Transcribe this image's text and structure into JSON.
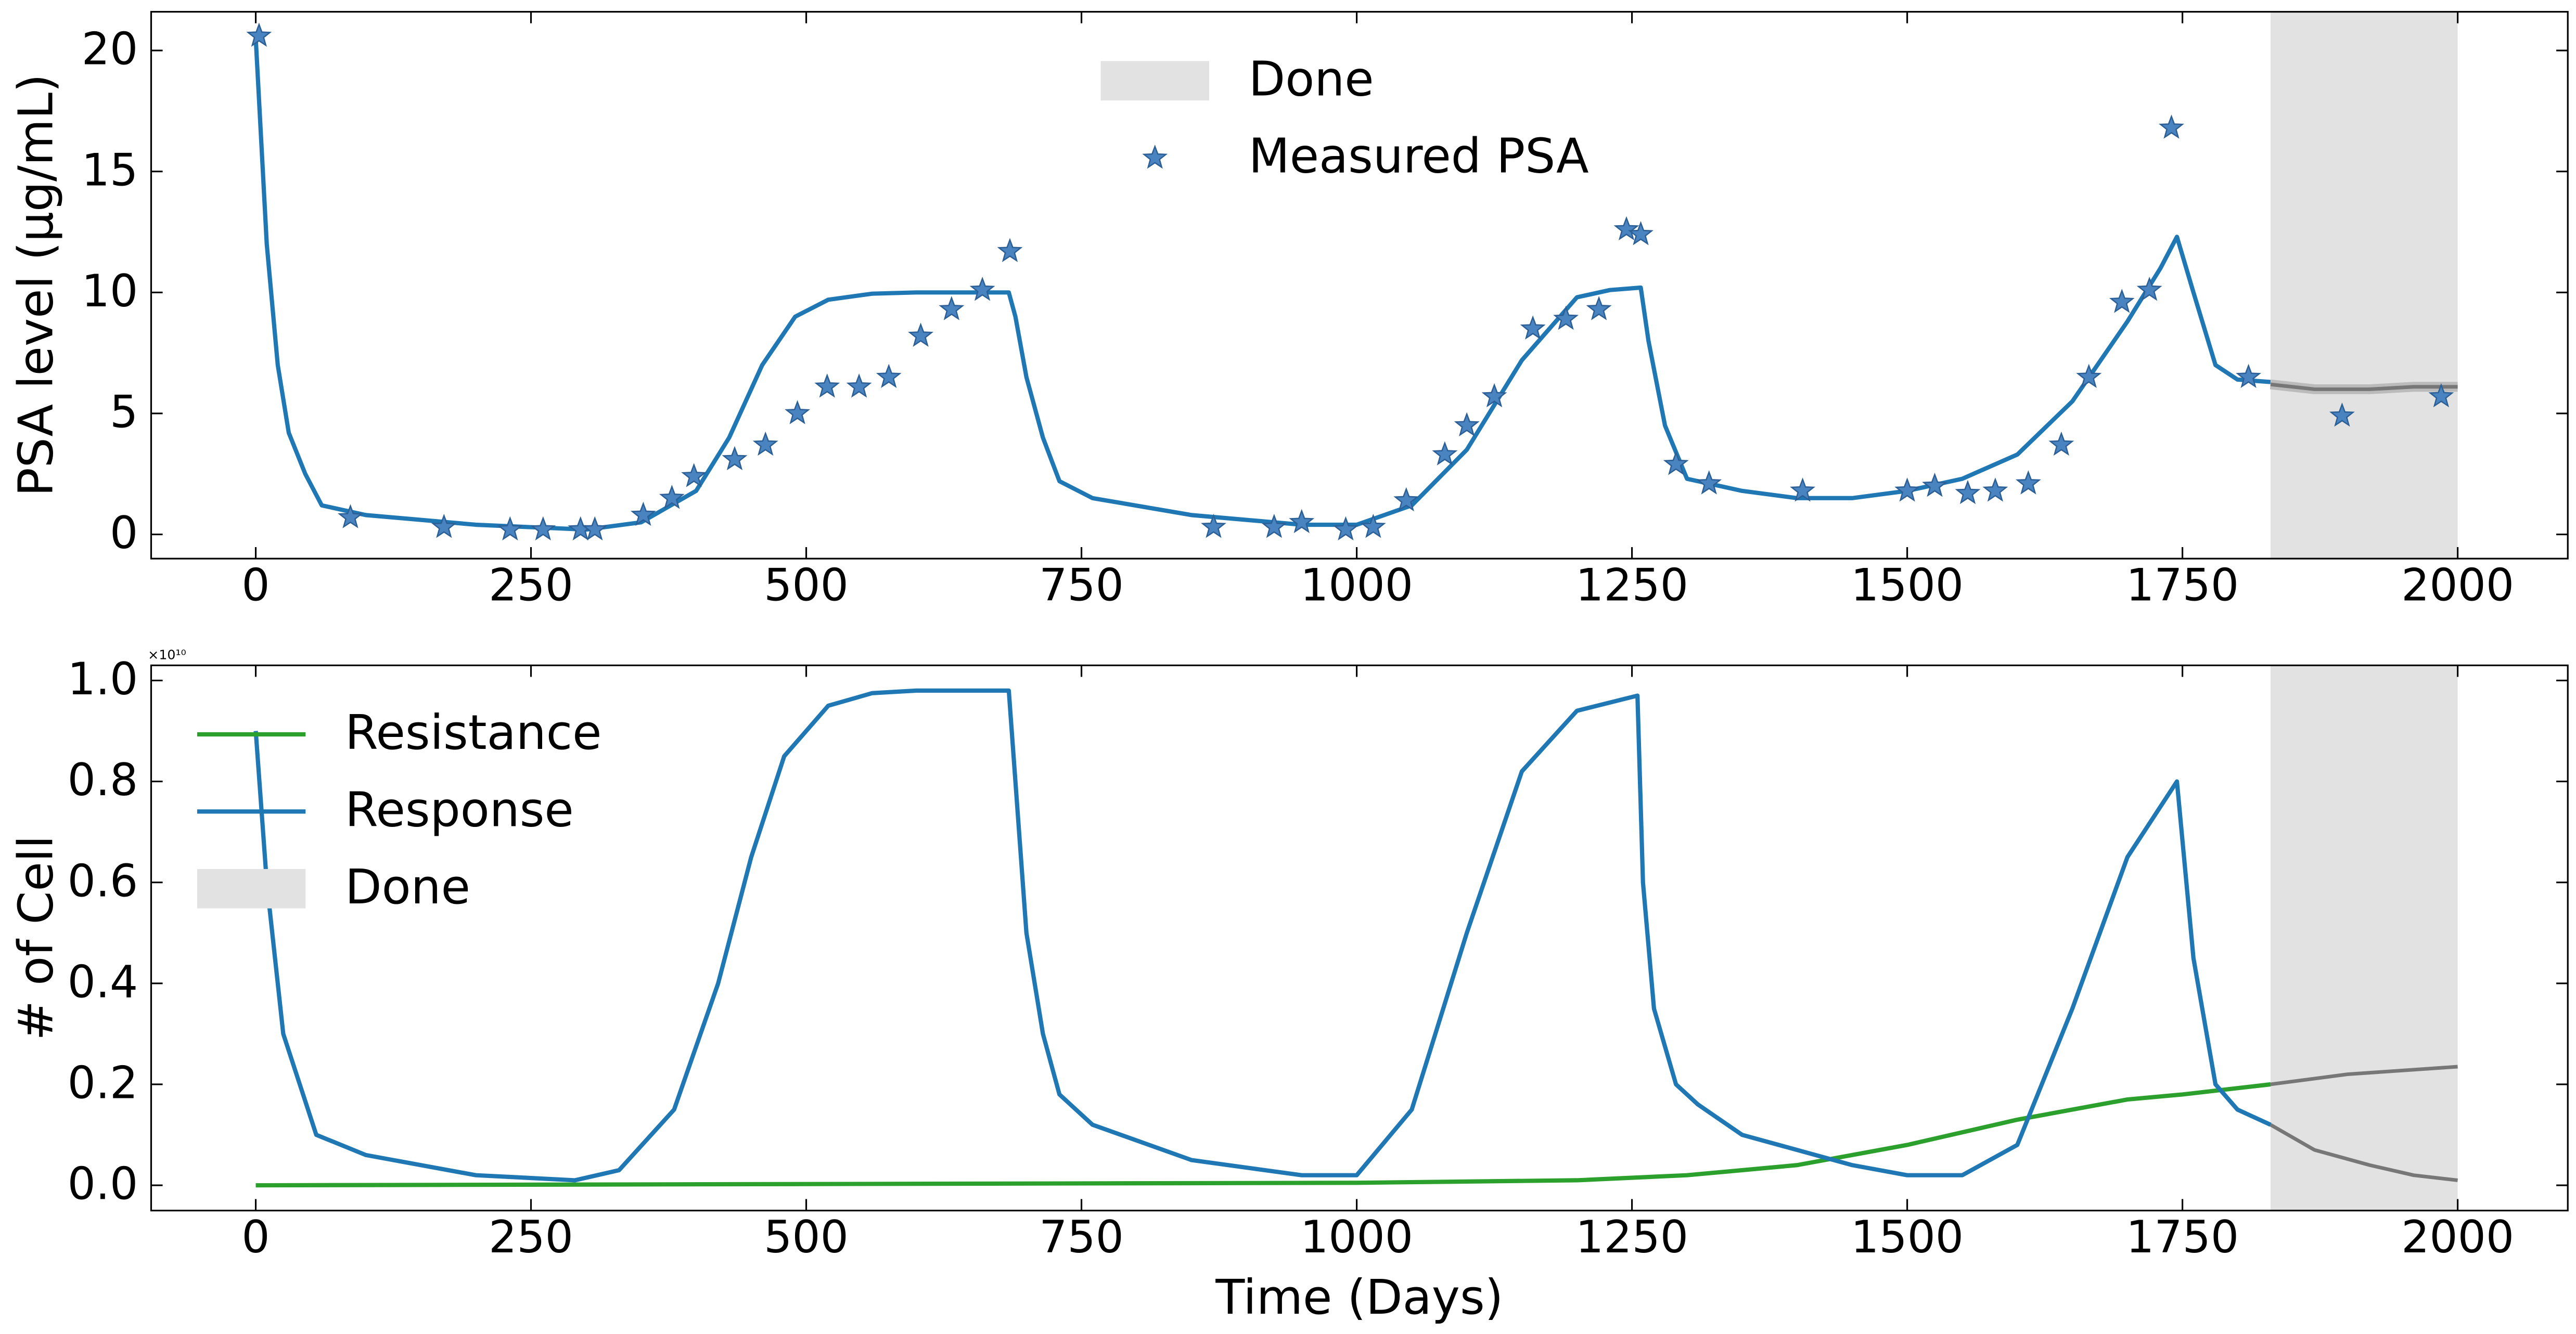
{
  "chart_data": [
    {
      "type": "line",
      "ylabel": "PSA level (μg/mL)",
      "xlim": [
        -95,
        2100
      ],
      "ylim": [
        -1,
        21.6
      ],
      "xticks": [
        0,
        250,
        500,
        750,
        1000,
        1250,
        1500,
        1750,
        2000
      ],
      "yticks": [
        0,
        5,
        10,
        15,
        20
      ],
      "legend": "upper center",
      "legend_order": [
        "span",
        "series"
      ],
      "span": {
        "name": "Done",
        "x": [
          1830,
          2000
        ],
        "color": "#e2e2e2"
      },
      "series": [
        {
          "color": "#1f77b4",
          "x": [
            0,
            10,
            20,
            30,
            45,
            60,
            100,
            200,
            300,
            350,
            400,
            430,
            460,
            490,
            520,
            560,
            600,
            684,
            690,
            700,
            715,
            730,
            760,
            850,
            950,
            1000,
            1050,
            1100,
            1150,
            1200,
            1230,
            1258,
            1265,
            1280,
            1300,
            1350,
            1400,
            1450,
            1500,
            1550,
            1600,
            1650,
            1700,
            1730,
            1745,
            1760,
            1780,
            1800,
            1830
          ],
          "values": [
            20.5,
            12,
            7,
            4.2,
            2.5,
            1.2,
            0.8,
            0.4,
            0.2,
            0.5,
            1.8,
            4,
            7,
            9,
            9.7,
            9.95,
            10,
            10,
            9,
            6.5,
            4,
            2.2,
            1.5,
            0.8,
            0.4,
            0.4,
            1.2,
            3.5,
            7.2,
            9.8,
            10.1,
            10.2,
            8,
            4.5,
            2.3,
            1.8,
            1.5,
            1.5,
            1.8,
            2.3,
            3.3,
            5.5,
            8.8,
            11,
            12.3,
            10,
            7,
            6.4,
            6.3
          ]
        },
        {
          "name": "Measured PSA",
          "marker": "star",
          "color": "#4a84c0",
          "x": [
            3,
            86,
            171,
            231,
            261,
            295,
            308,
            352,
            378,
            398,
            435,
            463,
            492,
            519,
            548,
            575,
            604,
            632,
            660,
            685,
            870,
            925,
            950,
            990,
            1015,
            1045,
            1080,
            1100,
            1125,
            1160,
            1190,
            1220,
            1245,
            1258,
            1290,
            1320,
            1405,
            1500,
            1525,
            1555,
            1580,
            1610,
            1640,
            1665,
            1695,
            1720,
            1740,
            1810,
            1895,
            1985
          ],
          "values": [
            20.6,
            0.7,
            0.3,
            0.2,
            0.2,
            0.2,
            0.2,
            0.8,
            1.5,
            2.4,
            3.1,
            3.7,
            5.0,
            6.1,
            6.1,
            6.5,
            8.2,
            9.3,
            10.1,
            11.7,
            0.3,
            0.3,
            0.5,
            0.2,
            0.3,
            1.4,
            3.3,
            4.5,
            5.7,
            8.5,
            8.9,
            9.3,
            12.6,
            12.4,
            2.9,
            2.1,
            1.8,
            1.8,
            2.0,
            1.7,
            1.8,
            2.1,
            3.7,
            6.5,
            9.6,
            10.1,
            16.8,
            6.5,
            4.9,
            5.7
          ]
        }
      ],
      "forecast": [
        {
          "color": "#777777",
          "x": [
            1830,
            1870,
            1920,
            1960,
            2000
          ],
          "values": [
            6.2,
            6.0,
            6.0,
            6.1,
            6.1
          ]
        }
      ]
    },
    {
      "type": "line",
      "ylabel": "# of Cell",
      "xlabel": "Time (Days)",
      "offset_text": "×10¹⁰",
      "xlim": [
        -95,
        2100
      ],
      "ylim": [
        -0.05,
        1.03
      ],
      "xticks": [
        0,
        250,
        500,
        750,
        1000,
        1250,
        1500,
        1750,
        2000
      ],
      "yticks": [
        {
          "value": 0,
          "label": "0.0"
        },
        0.2,
        0.4,
        0.6,
        0.8,
        {
          "value": 1,
          "label": "1.0"
        }
      ],
      "legend": "upper left",
      "legend_order": [
        "series",
        "span"
      ],
      "span": {
        "name": "Done",
        "x": [
          1830,
          2000
        ],
        "color": "#e2e2e2"
      },
      "series": [
        {
          "name": "Resistance",
          "color": "#2ca02c",
          "x": [
            0,
            1000,
            1200,
            1300,
            1400,
            1500,
            1600,
            1700,
            1750,
            1830
          ],
          "values": [
            0.0,
            0.005,
            0.01,
            0.02,
            0.04,
            0.08,
            0.13,
            0.17,
            0.18,
            0.2
          ]
        },
        {
          "name": "Response",
          "color": "#1f77b4",
          "x": [
            0,
            10,
            25,
            40,
            55,
            100,
            200,
            290,
            330,
            380,
            420,
            450,
            480,
            520,
            560,
            600,
            684,
            690,
            700,
            715,
            730,
            760,
            850,
            950,
            1000,
            1050,
            1100,
            1150,
            1200,
            1255,
            1260,
            1270,
            1290,
            1310,
            1350,
            1450,
            1500,
            1550,
            1600,
            1650,
            1700,
            1745,
            1760,
            1780,
            1800,
            1830
          ],
          "values": [
            0.9,
            0.6,
            0.3,
            0.2,
            0.1,
            0.06,
            0.02,
            0.01,
            0.03,
            0.15,
            0.4,
            0.65,
            0.85,
            0.95,
            0.975,
            0.98,
            0.98,
            0.8,
            0.5,
            0.3,
            0.18,
            0.12,
            0.05,
            0.02,
            0.02,
            0.15,
            0.5,
            0.82,
            0.94,
            0.97,
            0.6,
            0.35,
            0.2,
            0.16,
            0.1,
            0.04,
            0.02,
            0.02,
            0.08,
            0.35,
            0.65,
            0.8,
            0.45,
            0.2,
            0.15,
            0.12
          ]
        }
      ],
      "forecast": [
        {
          "color": "#777777",
          "x": [
            1830,
            1900,
            2000
          ],
          "values": [
            0.2,
            0.22,
            0.235
          ]
        },
        {
          "color": "#777777",
          "x": [
            1830,
            1870,
            1920,
            1960,
            2000
          ],
          "values": [
            0.12,
            0.07,
            0.04,
            0.02,
            0.01
          ]
        }
      ]
    }
  ]
}
